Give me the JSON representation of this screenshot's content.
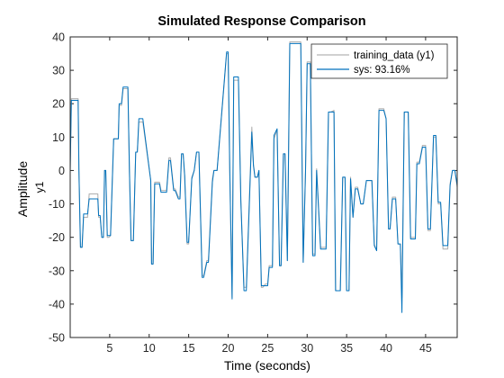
{
  "chart_data": {
    "type": "line",
    "title": "Simulated Response Comparison",
    "xlabel": "Time (seconds)",
    "ylabel": "Amplitude",
    "channel_label": "y1",
    "xlim": [
      0,
      49
    ],
    "ylim": [
      -50,
      40
    ],
    "xticks": [
      5,
      10,
      15,
      20,
      25,
      30,
      35,
      40,
      45
    ],
    "yticks": [
      -50,
      -40,
      -30,
      -20,
      -10,
      0,
      10,
      20,
      30,
      40
    ],
    "legend_position": "top-right",
    "series": [
      {
        "name": "training_data (y1)",
        "color": "#b3b3b3",
        "x": [
          0,
          0.15,
          0.3,
          1.0,
          1.1,
          1.3,
          1.5,
          1.7,
          2.2,
          2.4,
          3.5,
          3.6,
          3.8,
          4.0,
          4.2,
          4.35,
          4.5,
          4.7,
          4.9,
          5.1,
          5.5,
          5.7,
          6.1,
          6.2,
          6.5,
          6.7,
          7.3,
          7.5,
          7.7,
          8.0,
          8.3,
          8.5,
          8.7,
          8.9,
          9.2,
          10.2,
          10.3,
          10.5,
          10.7,
          11.3,
          11.5,
          12.0,
          12.2,
          12.5,
          12.7,
          13.1,
          13.3,
          13.7,
          13.9,
          14.1,
          14.3,
          14.5,
          14.8,
          15.0,
          15.4,
          15.7,
          16.0,
          16.3,
          16.7,
          16.9,
          17.3,
          17.5,
          18.0,
          18.2,
          18.4,
          18.6,
          19.8,
          20.0,
          20.2,
          20.5,
          20.7,
          20.9,
          21.3,
          21.6,
          22.0,
          22.3,
          23.0,
          23.2,
          23.4,
          23.7,
          23.9,
          24.2,
          24.4,
          24.7,
          25.0,
          25.2,
          25.6,
          25.8,
          26.2,
          26.5,
          26.7,
          27.0,
          27.2,
          27.5,
          27.8,
          28.1,
          28.5,
          28.8,
          29.2,
          29.5,
          29.8,
          30.0,
          30.4,
          30.7,
          31.0,
          31.2,
          31.7,
          32.1,
          32.4,
          32.7,
          33.0,
          33.4,
          33.6,
          33.8,
          34.2,
          34.5,
          34.8,
          35.0,
          35.3,
          35.5,
          35.8,
          36.1,
          36.4,
          36.8,
          37.1,
          37.5,
          37.9,
          38.2,
          38.5,
          38.8,
          39.1,
          39.4,
          39.7,
          40.0,
          40.3,
          40.5,
          40.8,
          41.2,
          41.5,
          41.8,
          42.0,
          42.3,
          42.6,
          42.8,
          43.1,
          43.4,
          43.7,
          43.9,
          44.2,
          44.6,
          45.0,
          45.3,
          45.6,
          46.0,
          46.3,
          46.6,
          46.9,
          47.2,
          47.5,
          47.8,
          48.1,
          48.4,
          48.7,
          49.0
        ],
        "y": [
          0,
          21.5,
          21.5,
          21.5,
          0,
          -23,
          -23,
          -14,
          -14,
          -7,
          -7,
          -14,
          -14,
          -20,
          -20,
          0,
          0,
          -20,
          -20,
          -19.5,
          9.5,
          9.5,
          9.5,
          19.5,
          19.5,
          24.5,
          24.5,
          0.5,
          -21,
          -21,
          5.5,
          5.5,
          14.5,
          14.5,
          14.5,
          -3,
          -28,
          -28,
          -3.5,
          -3.5,
          -6,
          -6,
          -6,
          3.8,
          3.8,
          -5.5,
          -5.5,
          -8,
          -8,
          5,
          5,
          -2,
          -22,
          -22,
          -2,
          0,
          5.5,
          5.5,
          -31.5,
          -31.5,
          -27,
          -27,
          -2.5,
          0,
          0,
          0,
          35,
          35,
          0,
          -38,
          27,
          27,
          27,
          -9,
          -35,
          -35,
          13,
          2,
          -2,
          -2,
          0,
          -35,
          -35,
          -34,
          -34,
          -28.5,
          -28.5,
          9.5,
          12,
          -28.5,
          -28.5,
          5,
          5,
          -27,
          38.5,
          38.5,
          38.5,
          38.5,
          38.5,
          -27.5,
          0.5,
          32.5,
          32.5,
          -25,
          -25,
          0.5,
          -23,
          -23,
          -23,
          17.5,
          17.5,
          18,
          -36,
          -36,
          -36,
          -2,
          -2,
          -36,
          -36,
          -2,
          -14,
          -5,
          -5,
          -10,
          -10,
          -3,
          -3,
          -3,
          -22,
          -24,
          18.5,
          18.5,
          18.5,
          15.5,
          -17.5,
          -17.5,
          -8,
          -8,
          -22,
          -22,
          -38,
          17.5,
          17.5,
          17.5,
          -20,
          -20,
          -20,
          2.5,
          2.5,
          7.5,
          7.5,
          -18,
          -18,
          10,
          10,
          -10,
          -10,
          -23.5,
          -23.5,
          -23.5,
          -4,
          0,
          0,
          -5
        ]
      },
      {
        "name": "sys: 93.16%",
        "color": "#0072bd",
        "x": [
          0,
          0.15,
          0.3,
          1.0,
          1.1,
          1.3,
          1.5,
          1.7,
          2.2,
          2.4,
          3.5,
          3.6,
          3.8,
          4.0,
          4.2,
          4.35,
          4.5,
          4.7,
          4.9,
          5.1,
          5.5,
          5.7,
          6.1,
          6.2,
          6.5,
          6.7,
          7.3,
          7.5,
          7.7,
          8.0,
          8.3,
          8.5,
          8.7,
          8.9,
          9.2,
          10.2,
          10.3,
          10.5,
          10.7,
          11.3,
          11.5,
          12.0,
          12.2,
          12.5,
          12.7,
          13.1,
          13.3,
          13.7,
          13.9,
          14.1,
          14.3,
          14.5,
          14.8,
          15.0,
          15.4,
          15.7,
          16.0,
          16.3,
          16.7,
          16.9,
          17.3,
          17.5,
          18.0,
          18.2,
          18.4,
          18.6,
          19.8,
          20.0,
          20.2,
          20.5,
          20.7,
          20.9,
          21.3,
          21.6,
          22.0,
          22.3,
          23.0,
          23.2,
          23.4,
          23.7,
          23.9,
          24.2,
          24.4,
          24.7,
          25.0,
          25.2,
          25.6,
          25.8,
          26.2,
          26.5,
          26.7,
          27.0,
          27.2,
          27.5,
          27.8,
          28.1,
          28.5,
          28.8,
          29.2,
          29.5,
          29.8,
          30.0,
          30.4,
          30.7,
          31.0,
          31.2,
          31.7,
          32.1,
          32.4,
          32.7,
          33.0,
          33.4,
          33.6,
          33.8,
          34.2,
          34.5,
          34.8,
          35.0,
          35.3,
          35.5,
          35.8,
          36.1,
          36.4,
          36.8,
          37.1,
          37.5,
          37.9,
          38.2,
          38.5,
          38.8,
          39.1,
          39.4,
          39.7,
          40.0,
          40.3,
          40.5,
          40.8,
          41.2,
          41.5,
          41.8,
          42.0,
          42.3,
          42.6,
          42.8,
          43.1,
          43.4,
          43.7,
          43.9,
          44.2,
          44.6,
          45.0,
          45.3,
          45.6,
          46.0,
          46.3,
          46.6,
          46.9,
          47.2,
          47.5,
          47.8,
          48.1,
          48.4,
          48.7,
          49.0
        ],
        "y": [
          0,
          21,
          21,
          21,
          0,
          -23,
          -23,
          -13,
          -13,
          -8.5,
          -8.5,
          -13.5,
          -13.5,
          -20,
          -20,
          0,
          0,
          -19.5,
          -19.5,
          -19.5,
          9.5,
          9.5,
          9.5,
          20,
          20,
          25,
          25,
          0,
          -21,
          -21,
          5.5,
          5.5,
          15.5,
          15.5,
          15.5,
          -3,
          -28,
          -28,
          -4,
          -4,
          -6.5,
          -6.5,
          -6.5,
          3,
          3,
          -6,
          -6,
          -8.5,
          -8.5,
          5,
          5,
          -1.5,
          -21.5,
          -21.5,
          -2.5,
          0,
          5.5,
          5.5,
          -32,
          -32,
          -27.5,
          -27.5,
          -3.5,
          0,
          0,
          0,
          35.5,
          35.5,
          0,
          -38.5,
          28,
          28,
          28,
          -9,
          -36,
          -36,
          11.5,
          1.5,
          -2,
          -2,
          0,
          -34.5,
          -34.5,
          -34.5,
          -34.5,
          -29,
          -29,
          10.5,
          12.5,
          -28.5,
          -28.5,
          5,
          5,
          -27,
          38,
          38,
          38,
          38,
          38,
          -27.5,
          0,
          32,
          32,
          -25.5,
          -25.5,
          0,
          -23.5,
          -23.5,
          -23.5,
          17.5,
          17.5,
          17.5,
          -36,
          -36,
          -36,
          -2,
          -2,
          -36,
          -36,
          -2.5,
          -14,
          -5.5,
          -5.5,
          -10,
          -10,
          -3,
          -3,
          -3,
          -22.5,
          -24,
          18,
          18,
          18,
          15.5,
          -17.5,
          -17.5,
          -8.5,
          -8.5,
          -22,
          -22,
          -42.5,
          17.5,
          17.5,
          17.5,
          -20.5,
          -20.5,
          -20.5,
          2,
          2,
          7,
          7,
          -17.5,
          -17.5,
          10.5,
          10.5,
          -9.5,
          -9.5,
          -22.5,
          -22.5,
          -22.5,
          -4.5,
          0,
          0,
          -4.5
        ]
      }
    ]
  }
}
